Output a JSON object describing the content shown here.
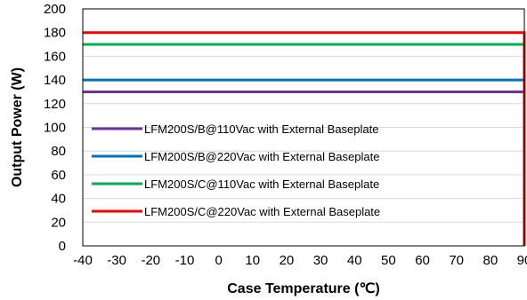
{
  "chart_data": {
    "type": "line",
    "xlabel": "Case Temperature (℃)",
    "ylabel": "Output Power (W)",
    "xlim": [
      -40,
      90
    ],
    "ylim": [
      0,
      200
    ],
    "xticks": [
      "-40",
      "-30",
      "-20",
      "-10",
      "0",
      "10",
      "20",
      "30",
      "40",
      "50",
      "60",
      "70",
      "80",
      "90"
    ],
    "yticks": [
      "0",
      "20",
      "40",
      "60",
      "80",
      "100",
      "120",
      "140",
      "160",
      "180",
      "200"
    ],
    "grid": "horizontal",
    "legend_position": "bottom-left",
    "series": [
      {
        "name": "LFM200S/B@110Vac with External Baseplate",
        "color": "#7030A0",
        "x": [
          -40,
          90
        ],
        "y": [
          130,
          130
        ]
      },
      {
        "name": "LFM200S/B@220Vac with External Baseplate",
        "color": "#0070C0",
        "x": [
          -40,
          90
        ],
        "y": [
          140,
          140
        ]
      },
      {
        "name": "LFM200S/C@110Vac with External Baseplate",
        "color": "#00B050",
        "x": [
          -40,
          90
        ],
        "y": [
          170,
          170
        ]
      },
      {
        "name": "LFM200S/C@220Vac with External Baseplate",
        "color": "#FF0000",
        "x": [
          -40,
          90,
          90
        ],
        "y": [
          180,
          180,
          0
        ]
      }
    ]
  }
}
